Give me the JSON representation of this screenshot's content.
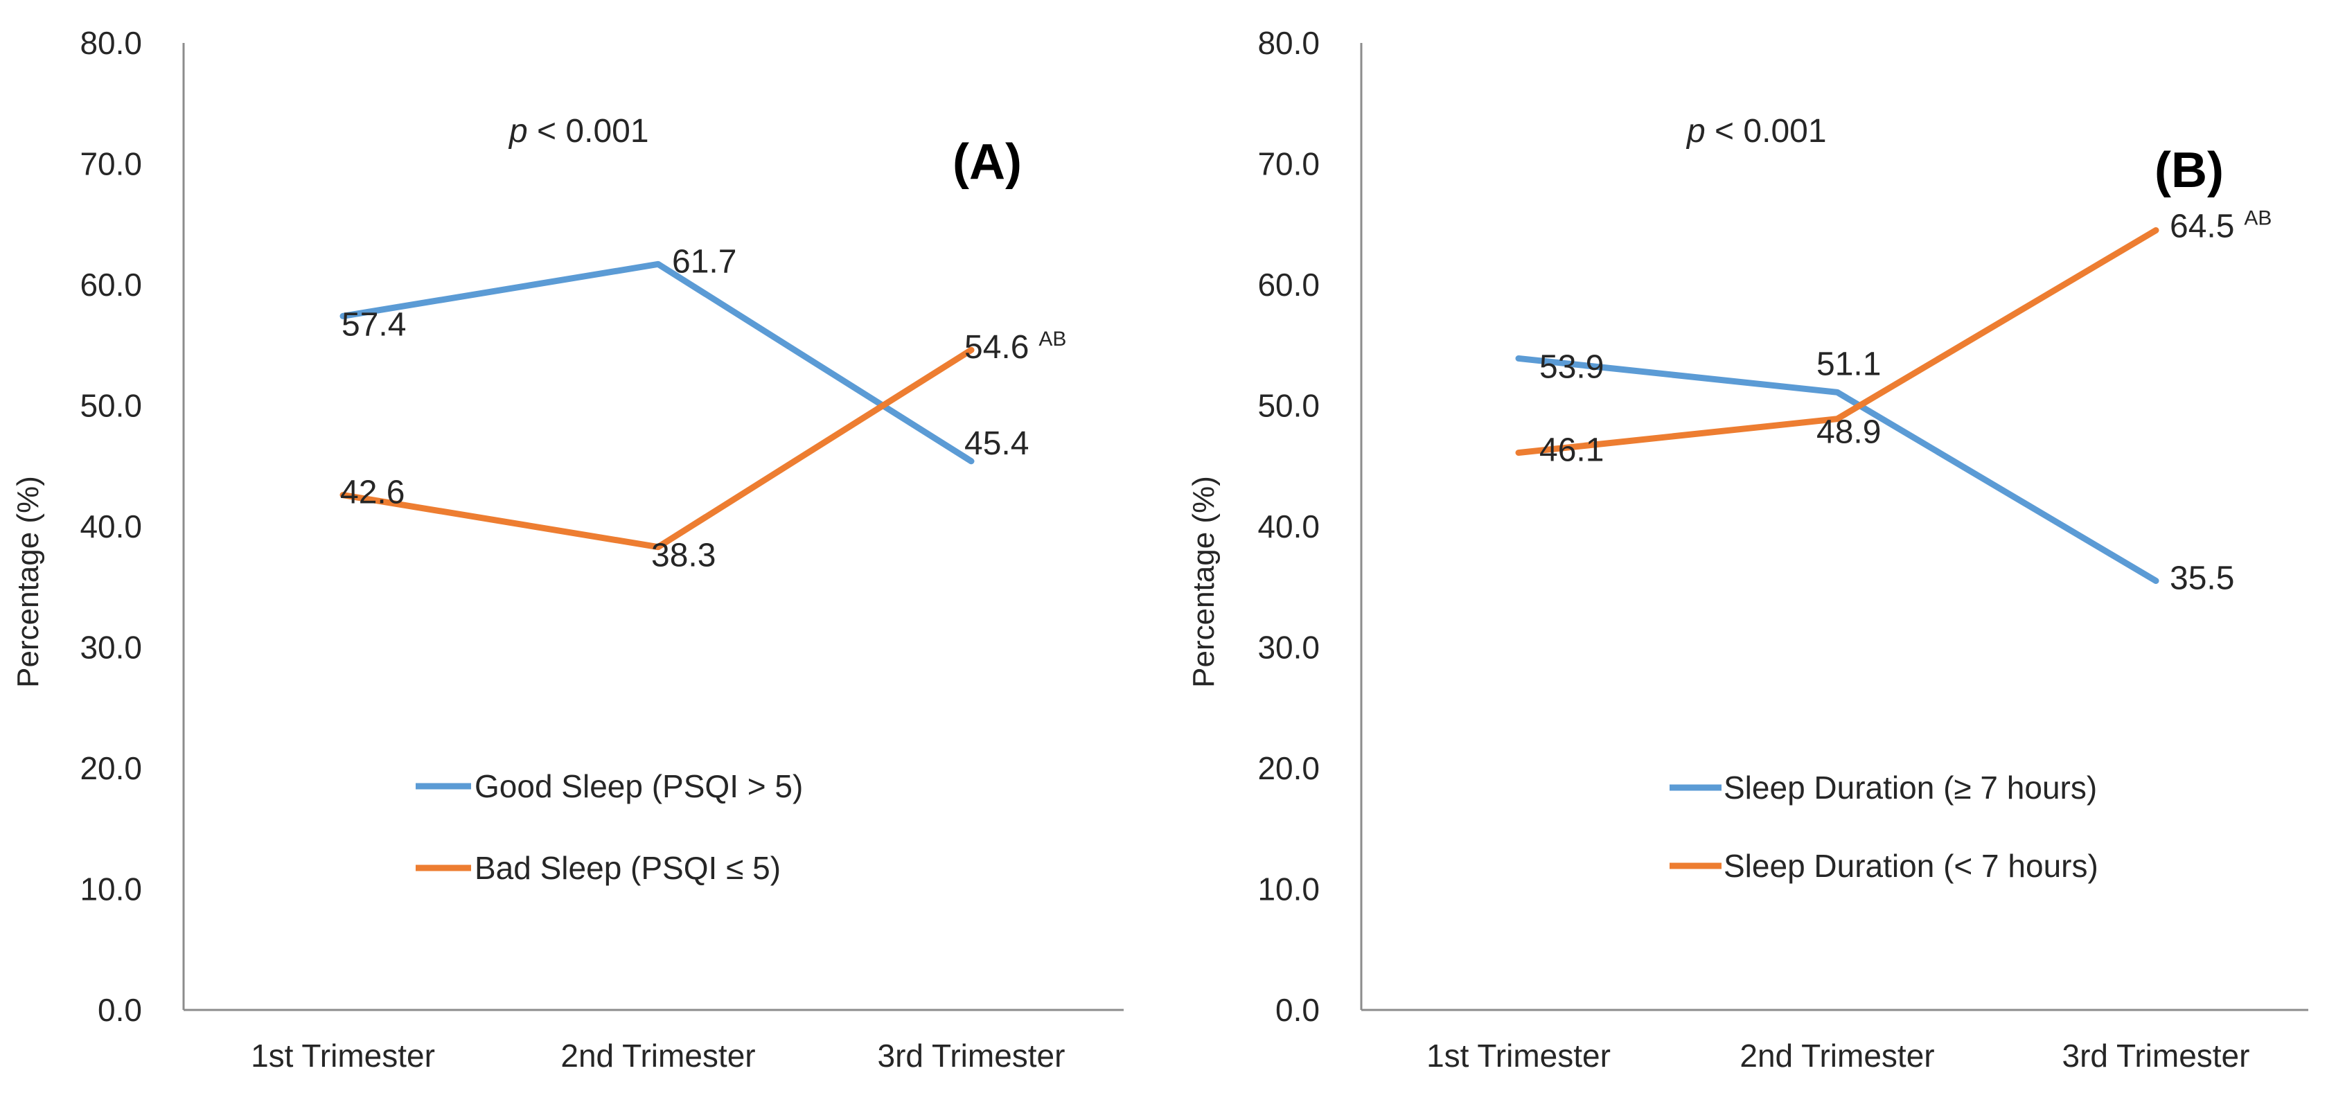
{
  "chart_data": [
    {
      "type": "line",
      "panel_label": "(A)",
      "annotation_prefix": "p",
      "annotation_rest": " < 0.001",
      "ylabel": "Percentage (%)",
      "xlabel": "",
      "ylim": [
        0,
        80
      ],
      "yticks": [
        "0.0",
        "10.0",
        "20.0",
        "30.0",
        "40.0",
        "50.0",
        "60.0",
        "70.0",
        "80.0"
      ],
      "categories": [
        "1st Trimester",
        "2nd Trimester",
        "3rd Trimester"
      ],
      "series": [
        {
          "name": "Good Sleep (PSQI > 5)",
          "color": "#5B9BD5",
          "values": [
            57.4,
            61.7,
            45.4
          ],
          "labels": [
            "57.4",
            "61.7",
            "45.4"
          ],
          "superscripts": [
            "",
            "",
            ""
          ]
        },
        {
          "name": "Bad Sleep (PSQI ≤ 5)",
          "color": "#ED7D31",
          "values": [
            42.6,
            38.3,
            54.6
          ],
          "labels": [
            "42.6",
            "38.3",
            "54.6"
          ],
          "superscripts": [
            "",
            "",
            "AB"
          ]
        }
      ]
    },
    {
      "type": "line",
      "panel_label": "(B)",
      "annotation_prefix": "p",
      "annotation_rest": " < 0.001",
      "ylabel": "Percentage (%)",
      "xlabel": "",
      "ylim": [
        0,
        80
      ],
      "yticks": [
        "0.0",
        "10.0",
        "20.0",
        "30.0",
        "40.0",
        "50.0",
        "60.0",
        "70.0",
        "80.0"
      ],
      "categories": [
        "1st Trimester",
        "2nd Trimester",
        "3rd Trimester"
      ],
      "series": [
        {
          "name": "Sleep Duration (≥ 7 hours)",
          "color": "#5B9BD5",
          "values": [
            53.9,
            51.1,
            35.5
          ],
          "labels": [
            "53.9",
            "51.1",
            "35.5"
          ],
          "superscripts": [
            "",
            "",
            ""
          ]
        },
        {
          "name": "Sleep Duration (< 7 hours)",
          "color": "#ED7D31",
          "values": [
            46.1,
            48.9,
            64.5
          ],
          "labels": [
            "46.1",
            "48.9",
            "64.5"
          ],
          "superscripts": [
            "",
            "",
            "AB"
          ]
        }
      ]
    }
  ]
}
